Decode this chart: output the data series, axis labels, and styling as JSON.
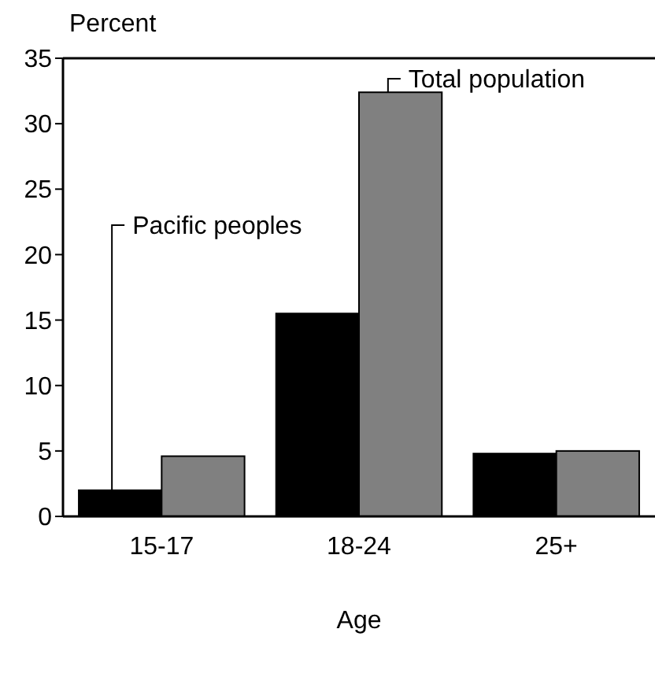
{
  "chart_data": {
    "type": "bar",
    "ylabel": "Percent",
    "xlabel": "Age",
    "categories": [
      "15-17",
      "18-24",
      "25+"
    ],
    "series": [
      {
        "name": "Pacific peoples",
        "color": "#000000",
        "values": [
          2.0,
          15.5,
          4.8
        ]
      },
      {
        "name": "Total population",
        "color": "#808080",
        "values": [
          4.6,
          32.4,
          5.0
        ]
      }
    ],
    "ylim": [
      0,
      35
    ],
    "yticks": [
      0,
      5,
      10,
      15,
      20,
      25,
      30,
      35
    ],
    "grid": false
  }
}
